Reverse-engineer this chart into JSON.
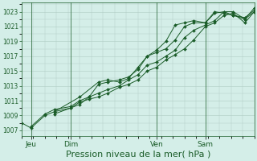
{
  "bg_color": "#d4eee8",
  "plot_bg_color": "#d4eee8",
  "line_color": "#1a5c28",
  "grid_color": "#b0ccc4",
  "xlabel": "Pression niveau de la mer( hPa )",
  "xlabel_fontsize": 8,
  "yticks": [
    1007,
    1009,
    1011,
    1013,
    1015,
    1017,
    1019,
    1021,
    1023
  ],
  "ylim": [
    1006.2,
    1024.2
  ],
  "xlim": [
    0.0,
    1.0
  ],
  "xtick_labels": [
    "Jeu",
    "Dim",
    "Ven",
    "Sam"
  ],
  "xtick_positions": [
    0.04,
    0.21,
    0.58,
    0.79
  ],
  "vlines": [
    0.04,
    0.21,
    0.58,
    0.79
  ],
  "series": [
    {
      "x": [
        0.0,
        0.04,
        0.1,
        0.14,
        0.21,
        0.25,
        0.29,
        0.33,
        0.37,
        0.42,
        0.46,
        0.5,
        0.54,
        0.58,
        0.62,
        0.66,
        0.7,
        0.74,
        0.79,
        0.83,
        0.87,
        0.91,
        0.96,
        1.0
      ],
      "y": [
        1008.0,
        1007.3,
        1009.0,
        1009.5,
        1010.0,
        1010.8,
        1011.2,
        1011.5,
        1012.0,
        1012.8,
        1013.2,
        1013.8,
        1015.0,
        1015.5,
        1016.5,
        1017.2,
        1018.0,
        1019.2,
        1021.0,
        1021.5,
        1022.5,
        1022.8,
        1021.5,
        1023.0
      ]
    },
    {
      "x": [
        0.04,
        0.1,
        0.14,
        0.21,
        0.25,
        0.29,
        0.33,
        0.37,
        0.42,
        0.46,
        0.5,
        0.54,
        0.58,
        0.62,
        0.66,
        0.7,
        0.74,
        0.79,
        0.83,
        0.87,
        0.91,
        0.96,
        1.0
      ],
      "y": [
        1007.5,
        1009.2,
        1009.8,
        1010.2,
        1011.0,
        1011.5,
        1012.0,
        1012.5,
        1013.0,
        1013.8,
        1014.5,
        1015.8,
        1016.2,
        1017.0,
        1017.8,
        1019.5,
        1020.5,
        1021.2,
        1021.8,
        1023.0,
        1022.5,
        1022.2,
        1023.2
      ]
    },
    {
      "x": [
        0.14,
        0.21,
        0.25,
        0.29,
        0.33,
        0.37,
        0.42,
        0.46,
        0.5,
        0.54,
        0.58,
        0.62,
        0.66,
        0.7,
        0.74,
        0.79,
        0.83,
        0.87,
        0.91,
        0.96,
        1.0
      ],
      "y": [
        1009.2,
        1010.0,
        1010.5,
        1011.5,
        1013.2,
        1013.5,
        1013.8,
        1014.2,
        1015.2,
        1017.0,
        1017.5,
        1018.0,
        1019.2,
        1021.0,
        1021.5,
        1021.5,
        1022.8,
        1023.0,
        1023.0,
        1022.0,
        1023.5
      ]
    },
    {
      "x": [
        0.14,
        0.25,
        0.33,
        0.37,
        0.42,
        0.46,
        0.5,
        0.54,
        0.58,
        0.62,
        0.66,
        0.7,
        0.74,
        0.79,
        0.83,
        0.87,
        0.91,
        0.96,
        1.0
      ],
      "y": [
        1009.5,
        1011.5,
        1013.5,
        1013.8,
        1013.5,
        1014.0,
        1015.5,
        1017.0,
        1017.8,
        1019.0,
        1021.2,
        1021.5,
        1021.8,
        1021.5,
        1023.0,
        1022.8,
        1022.5,
        1022.0,
        1023.0
      ]
    }
  ]
}
